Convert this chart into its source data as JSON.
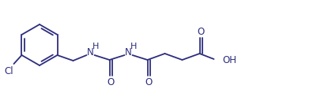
{
  "bg_color": "#ffffff",
  "line_color": "#2d2d7f",
  "text_color": "#2d2d7f",
  "figsize": [
    4.01,
    1.32
  ],
  "dpi": 100,
  "xlim": [
    0,
    401
  ],
  "ylim": [
    0,
    132
  ]
}
